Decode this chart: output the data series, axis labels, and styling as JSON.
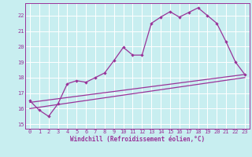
{
  "xlabel": "Windchill (Refroidissement éolien,°C)",
  "bg_color": "#c8eef0",
  "grid_color": "#ffffff",
  "line_color": "#993399",
  "xlim": [
    -0.5,
    23.5
  ],
  "ylim": [
    14.7,
    22.8
  ],
  "yticks": [
    15,
    16,
    17,
    18,
    19,
    20,
    21,
    22
  ],
  "xticks": [
    0,
    1,
    2,
    3,
    4,
    5,
    6,
    7,
    8,
    9,
    10,
    11,
    12,
    13,
    14,
    15,
    16,
    17,
    18,
    19,
    20,
    21,
    22,
    23
  ],
  "series1_x": [
    0,
    1,
    2,
    3,
    4,
    5,
    6,
    7,
    8,
    9,
    10,
    11,
    12,
    13,
    14,
    15,
    16,
    17,
    18,
    19,
    20,
    21,
    22,
    23
  ],
  "series1_y": [
    16.5,
    15.9,
    15.5,
    16.3,
    17.6,
    17.8,
    17.7,
    18.0,
    18.3,
    19.1,
    19.95,
    19.45,
    19.45,
    21.5,
    21.9,
    22.25,
    21.9,
    22.2,
    22.5,
    22.0,
    21.5,
    20.3,
    19.0,
    18.2
  ],
  "series2_x": [
    0,
    23
  ],
  "series2_y": [
    16.0,
    18.0
  ],
  "series3_x": [
    0,
    23
  ],
  "series3_y": [
    16.4,
    18.2
  ],
  "xlabel_fontsize": 5.5,
  "tick_fontsize": 5.0,
  "linewidth": 0.9,
  "markersize": 2.2
}
